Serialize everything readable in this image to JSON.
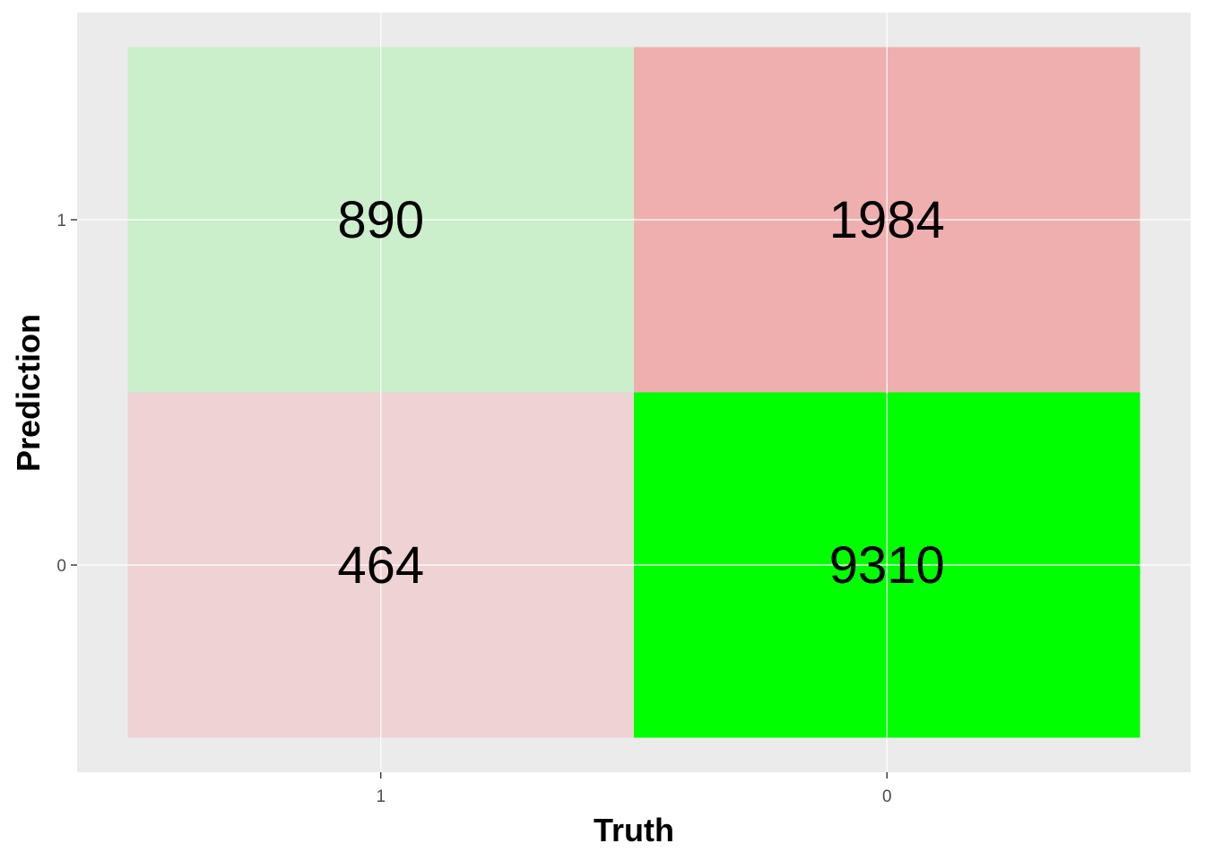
{
  "chart_data": {
    "type": "heatmap",
    "title": "",
    "xlabel": "Truth",
    "ylabel": "Prediction",
    "x_categories": [
      "1",
      "0"
    ],
    "y_categories": [
      "1",
      "0"
    ],
    "grid": true,
    "legend": "none",
    "panel_background": "#ebebeb",
    "cells": [
      {
        "truth": "1",
        "prediction": "1",
        "value": 890,
        "label": "890",
        "color": "#cbeecb"
      },
      {
        "truth": "0",
        "prediction": "1",
        "value": 1984,
        "label": "1984",
        "color": "#efafaf"
      },
      {
        "truth": "1",
        "prediction": "0",
        "value": 464,
        "label": "464",
        "color": "#efd2d4"
      },
      {
        "truth": "0",
        "prediction": "0",
        "value": 9310,
        "label": "9310",
        "color": "#00ff00"
      }
    ]
  }
}
